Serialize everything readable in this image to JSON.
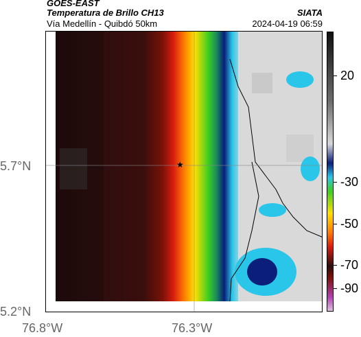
{
  "header": {
    "title_line1": "GOES-EAST",
    "title_line2": "Temperatura de Brillo CH13",
    "subtitle": "Vía Medellín - Quibdó 50km",
    "org": "SIATA",
    "timestamp": "2024-04-19 06:59"
  },
  "axes": {
    "lat_labels": [
      "5.7°N",
      "5.2°N"
    ],
    "lon_labels": [
      "76.8°W",
      "76.3°W"
    ]
  },
  "colorbar": {
    "ticks": [
      "20",
      "-30",
      "-50",
      "-70",
      "-90"
    ]
  },
  "colors": {
    "cold_cloud_gray": "#d8d8d8",
    "warm_dark": "#2a0f0f",
    "red": "#d81c10",
    "yellow": "#ffe000",
    "green": "#3fcf20",
    "cyan": "#29c6e9",
    "navy": "#0a1e7a"
  }
}
